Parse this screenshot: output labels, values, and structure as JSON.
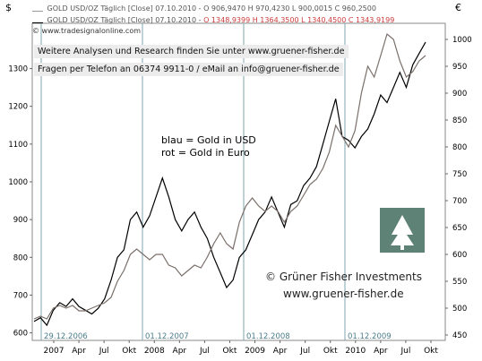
{
  "chart_data": {
    "type": "line",
    "legend": [
      {
        "label": "GOLD USD/OZ Täglich [Close]",
        "date": "07.10.2010",
        "ohlc": "O 906,9470 H 970,4230 L 900,0015 C 960,2500",
        "color": "#6b6b6b"
      },
      {
        "label": "GOLD USD/OZ Täglich [Close]",
        "date": "07.10.2010",
        "ohlc": "O 1348,9399 H 1364,3500 L 1340,4500 C 1343,9199",
        "color": "#000000"
      }
    ],
    "watermark": "© www.tradesignalonline.com",
    "info_lines": [
      "Weitere Analysen und Research finden Sie unter www.gruener-fisher.de",
      "Fragen per Telefon an 06374 9911-0 / eMail an info@gruener-fisher.de"
    ],
    "annotation_1": "blau = Gold in USD",
    "annotation_2": "rot = Gold in Euro",
    "brand_line_1": "© Grüner Fisher Investments",
    "brand_line_2": "www.gruener-fisher.de",
    "left_axis": {
      "symbol": "$",
      "ticks": [
        600,
        700,
        800,
        900,
        1000,
        1100,
        1200,
        1300
      ],
      "ylim": [
        580,
        1420
      ]
    },
    "right_axis": {
      "symbol": "€",
      "ticks": [
        450,
        500,
        550,
        600,
        650,
        700,
        750,
        800,
        850,
        900,
        950,
        1000
      ],
      "ylim": [
        440,
        1030
      ]
    },
    "x_ticks": [
      "2007",
      "Apr",
      "Jul",
      "Okt",
      "2008",
      "Apr",
      "Jul",
      "Okt",
      "2009",
      "Apr",
      "Jul",
      "Okt",
      "2010",
      "Apr",
      "Jul",
      "Okt"
    ],
    "vlines": [
      "29.12.2006",
      "01.12.2007",
      "01.12.2008",
      "01.12.2009"
    ],
    "series": [
      {
        "name": "Gold in USD",
        "axis": "left",
        "color": "#000000",
        "values": [
          630,
          640,
          620,
          660,
          680,
          670,
          690,
          670,
          660,
          650,
          665,
          690,
          740,
          800,
          820,
          900,
          920,
          880,
          910,
          960,
          1010,
          960,
          900,
          870,
          900,
          920,
          880,
          850,
          800,
          760,
          720,
          740,
          800,
          820,
          860,
          900,
          920,
          960,
          920,
          880,
          940,
          950,
          990,
          1010,
          1040,
          1100,
          1160,
          1220,
          1120,
          1110,
          1090,
          1120,
          1140,
          1180,
          1230,
          1210,
          1250,
          1290,
          1250,
          1310,
          1340,
          1370
        ]
      },
      {
        "name": "Gold in Euro",
        "axis": "right",
        "color": "#7a6f6a",
        "values": [
          480,
          485,
          480,
          500,
          505,
          500,
          505,
          495,
          495,
          500,
          505,
          510,
          520,
          550,
          570,
          600,
          610,
          600,
          590,
          600,
          600,
          580,
          575,
          560,
          570,
          580,
          575,
          595,
          620,
          640,
          620,
          610,
          660,
          690,
          705,
          690,
          680,
          690,
          680,
          660,
          680,
          690,
          710,
          730,
          740,
          760,
          790,
          840,
          820,
          800,
          830,
          900,
          950,
          930,
          970,
          1010,
          1000,
          960,
          930,
          940,
          960,
          970
        ]
      }
    ]
  }
}
